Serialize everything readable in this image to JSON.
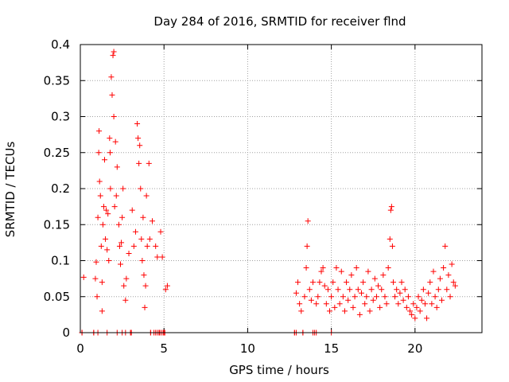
{
  "chart_data": {
    "type": "scatter",
    "title": "Day 284 of 2016, SRMTID for receiver flnd",
    "xlabel": "GPS time / hours",
    "ylabel": "SRMTID / TECUs",
    "xlim": [
      0,
      24
    ],
    "ylim": [
      0,
      0.4
    ],
    "x_ticks": [
      0,
      5,
      10,
      15,
      20
    ],
    "y_ticks": [
      0,
      0.05,
      0.1,
      0.15,
      0.2,
      0.25,
      0.3,
      0.35,
      0.4
    ],
    "x_tick_labels": [
      "0",
      "5",
      "10",
      "15",
      "20"
    ],
    "y_tick_labels": [
      "0",
      "0.05",
      "0.1",
      "0.15",
      "0.2",
      "0.25",
      "0.3",
      "0.35",
      "0.4"
    ],
    "grid": true,
    "marker": "+",
    "color": "#ff0000",
    "series": [
      {
        "name": "SRMTID",
        "points": [
          [
            0.1,
            0.0
          ],
          [
            0.2,
            0.077
          ],
          [
            0.8,
            0.0
          ],
          [
            0.9,
            0.075
          ],
          [
            0.95,
            0.098
          ],
          [
            1.0,
            0.05
          ],
          [
            1.05,
            0.16
          ],
          [
            1.1,
            0.25
          ],
          [
            1.12,
            0.28
          ],
          [
            1.15,
            0.21
          ],
          [
            1.2,
            0.19
          ],
          [
            1.25,
            0.12
          ],
          [
            1.3,
            0.03
          ],
          [
            1.3,
            0.07
          ],
          [
            1.35,
            0.15
          ],
          [
            1.4,
            0.175
          ],
          [
            1.45,
            0.24
          ],
          [
            1.5,
            0.13
          ],
          [
            1.55,
            0.17
          ],
          [
            1.6,
            0.115
          ],
          [
            1.65,
            0.165
          ],
          [
            1.7,
            0.1
          ],
          [
            1.75,
            0.27
          ],
          [
            1.78,
            0.25
          ],
          [
            1.8,
            0.2
          ],
          [
            1.85,
            0.355
          ],
          [
            1.9,
            0.33
          ],
          [
            1.95,
            0.385
          ],
          [
            2.0,
            0.39
          ],
          [
            2.0,
            0.3
          ],
          [
            2.05,
            0.175
          ],
          [
            2.1,
            0.265
          ],
          [
            2.15,
            0.19
          ],
          [
            2.2,
            0.23
          ],
          [
            2.3,
            0.15
          ],
          [
            2.35,
            0.12
          ],
          [
            2.4,
            0.095
          ],
          [
            2.45,
            0.125
          ],
          [
            2.5,
            0.16
          ],
          [
            2.55,
            0.2
          ],
          [
            2.6,
            0.065
          ],
          [
            2.7,
            0.045
          ],
          [
            2.75,
            0.075
          ],
          [
            2.9,
            0.11
          ],
          [
            3.0,
            0.0
          ],
          [
            3.1,
            0.17
          ],
          [
            3.2,
            0.12
          ],
          [
            3.3,
            0.14
          ],
          [
            3.4,
            0.29
          ],
          [
            3.45,
            0.27
          ],
          [
            3.5,
            0.235
          ],
          [
            3.55,
            0.26
          ],
          [
            3.6,
            0.2
          ],
          [
            3.65,
            0.13
          ],
          [
            3.7,
            0.1
          ],
          [
            3.75,
            0.16
          ],
          [
            3.8,
            0.08
          ],
          [
            3.85,
            0.035
          ],
          [
            3.9,
            0.065
          ],
          [
            3.95,
            0.19
          ],
          [
            4.0,
            0.12
          ],
          [
            4.1,
            0.235
          ],
          [
            4.15,
            0.13
          ],
          [
            4.2,
            0.0
          ],
          [
            4.3,
            0.155
          ],
          [
            4.4,
            0.0
          ],
          [
            4.5,
            0.12
          ],
          [
            4.6,
            0.105
          ],
          [
            4.7,
            0.0
          ],
          [
            4.8,
            0.14
          ],
          [
            4.9,
            0.105
          ],
          [
            5.0,
            0.0
          ],
          [
            5.1,
            0.06
          ],
          [
            5.2,
            0.065
          ],
          [
            12.8,
            0.0
          ],
          [
            12.9,
            0.055
          ],
          [
            13.0,
            0.07
          ],
          [
            13.1,
            0.04
          ],
          [
            13.2,
            0.03
          ],
          [
            13.3,
            0.0
          ],
          [
            13.4,
            0.05
          ],
          [
            13.5,
            0.09
          ],
          [
            13.55,
            0.12
          ],
          [
            13.6,
            0.155
          ],
          [
            13.7,
            0.06
          ],
          [
            13.8,
            0.045
          ],
          [
            13.9,
            0.07
          ],
          [
            14.0,
            0.0
          ],
          [
            14.1,
            0.04
          ],
          [
            14.2,
            0.05
          ],
          [
            14.3,
            0.07
          ],
          [
            14.4,
            0.085
          ],
          [
            14.5,
            0.09
          ],
          [
            14.6,
            0.065
          ],
          [
            14.7,
            0.04
          ],
          [
            14.8,
            0.06
          ],
          [
            14.9,
            0.03
          ],
          [
            15.0,
            0.05
          ],
          [
            15.1,
            0.07
          ],
          [
            15.2,
            0.035
          ],
          [
            15.3,
            0.09
          ],
          [
            15.4,
            0.06
          ],
          [
            15.5,
            0.04
          ],
          [
            15.6,
            0.085
          ],
          [
            15.7,
            0.05
          ],
          [
            15.8,
            0.03
          ],
          [
            15.9,
            0.07
          ],
          [
            16.0,
            0.045
          ],
          [
            16.1,
            0.06
          ],
          [
            16.2,
            0.08
          ],
          [
            16.3,
            0.035
          ],
          [
            16.4,
            0.05
          ],
          [
            16.5,
            0.09
          ],
          [
            16.6,
            0.06
          ],
          [
            16.7,
            0.025
          ],
          [
            16.8,
            0.055
          ],
          [
            16.9,
            0.07
          ],
          [
            17.0,
            0.04
          ],
          [
            17.1,
            0.05
          ],
          [
            17.2,
            0.085
          ],
          [
            17.3,
            0.03
          ],
          [
            17.4,
            0.06
          ],
          [
            17.5,
            0.045
          ],
          [
            17.6,
            0.075
          ],
          [
            17.7,
            0.05
          ],
          [
            17.8,
            0.065
          ],
          [
            17.9,
            0.035
          ],
          [
            18.0,
            0.06
          ],
          [
            18.1,
            0.08
          ],
          [
            18.2,
            0.05
          ],
          [
            18.3,
            0.04
          ],
          [
            18.4,
            0.09
          ],
          [
            18.5,
            0.13
          ],
          [
            18.55,
            0.17
          ],
          [
            18.6,
            0.175
          ],
          [
            18.65,
            0.12
          ],
          [
            18.7,
            0.07
          ],
          [
            18.8,
            0.05
          ],
          [
            18.9,
            0.06
          ],
          [
            19.0,
            0.04
          ],
          [
            19.1,
            0.055
          ],
          [
            19.2,
            0.07
          ],
          [
            19.3,
            0.045
          ],
          [
            19.4,
            0.06
          ],
          [
            19.5,
            0.035
          ],
          [
            19.6,
            0.05
          ],
          [
            19.7,
            0.03
          ],
          [
            19.8,
            0.025
          ],
          [
            19.9,
            0.04
          ],
          [
            20.0,
            0.02
          ],
          [
            20.1,
            0.035
          ],
          [
            20.2,
            0.05
          ],
          [
            20.3,
            0.03
          ],
          [
            20.4,
            0.045
          ],
          [
            20.5,
            0.06
          ],
          [
            20.6,
            0.04
          ],
          [
            20.7,
            0.02
          ],
          [
            20.8,
            0.055
          ],
          [
            20.9,
            0.07
          ],
          [
            21.0,
            0.04
          ],
          [
            21.1,
            0.085
          ],
          [
            21.2,
            0.05
          ],
          [
            21.3,
            0.035
          ],
          [
            21.4,
            0.06
          ],
          [
            21.5,
            0.075
          ],
          [
            21.6,
            0.045
          ],
          [
            21.7,
            0.09
          ],
          [
            21.8,
            0.12
          ],
          [
            21.9,
            0.06
          ],
          [
            22.0,
            0.08
          ],
          [
            22.1,
            0.05
          ],
          [
            22.2,
            0.095
          ],
          [
            22.3,
            0.07
          ],
          [
            22.4,
            0.065
          ]
        ],
        "zero_points": [
          0.1,
          0.8,
          1.05,
          1.6,
          2.2,
          2.5,
          2.7,
          3.0,
          3.05,
          4.2,
          4.5,
          4.6,
          4.75,
          4.85,
          4.95,
          5.05,
          12.8,
          12.9,
          13.3,
          13.9,
          14.1,
          15.0
        ]
      }
    ]
  }
}
